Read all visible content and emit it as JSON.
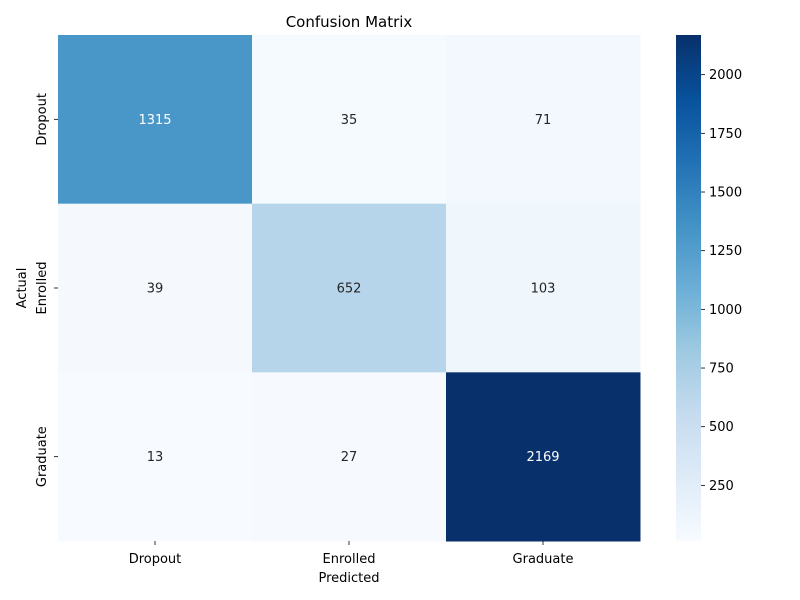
{
  "chart_data": {
    "type": "heatmap",
    "title": "Confusion Matrix",
    "xlabel": "Predicted",
    "ylabel": "Actual",
    "x_categories": [
      "Dropout",
      "Enrolled",
      "Graduate"
    ],
    "y_categories": [
      "Dropout",
      "Enrolled",
      "Graduate"
    ],
    "values": [
      [
        1315,
        35,
        71
      ],
      [
        39,
        652,
        103
      ],
      [
        13,
        27,
        2169
      ]
    ],
    "colormap": "Blues",
    "colorbar": {
      "min": 13,
      "max": 2169,
      "ticks": [
        250,
        500,
        750,
        1000,
        1250,
        1500,
        1750,
        2000
      ]
    },
    "grid": false
  }
}
